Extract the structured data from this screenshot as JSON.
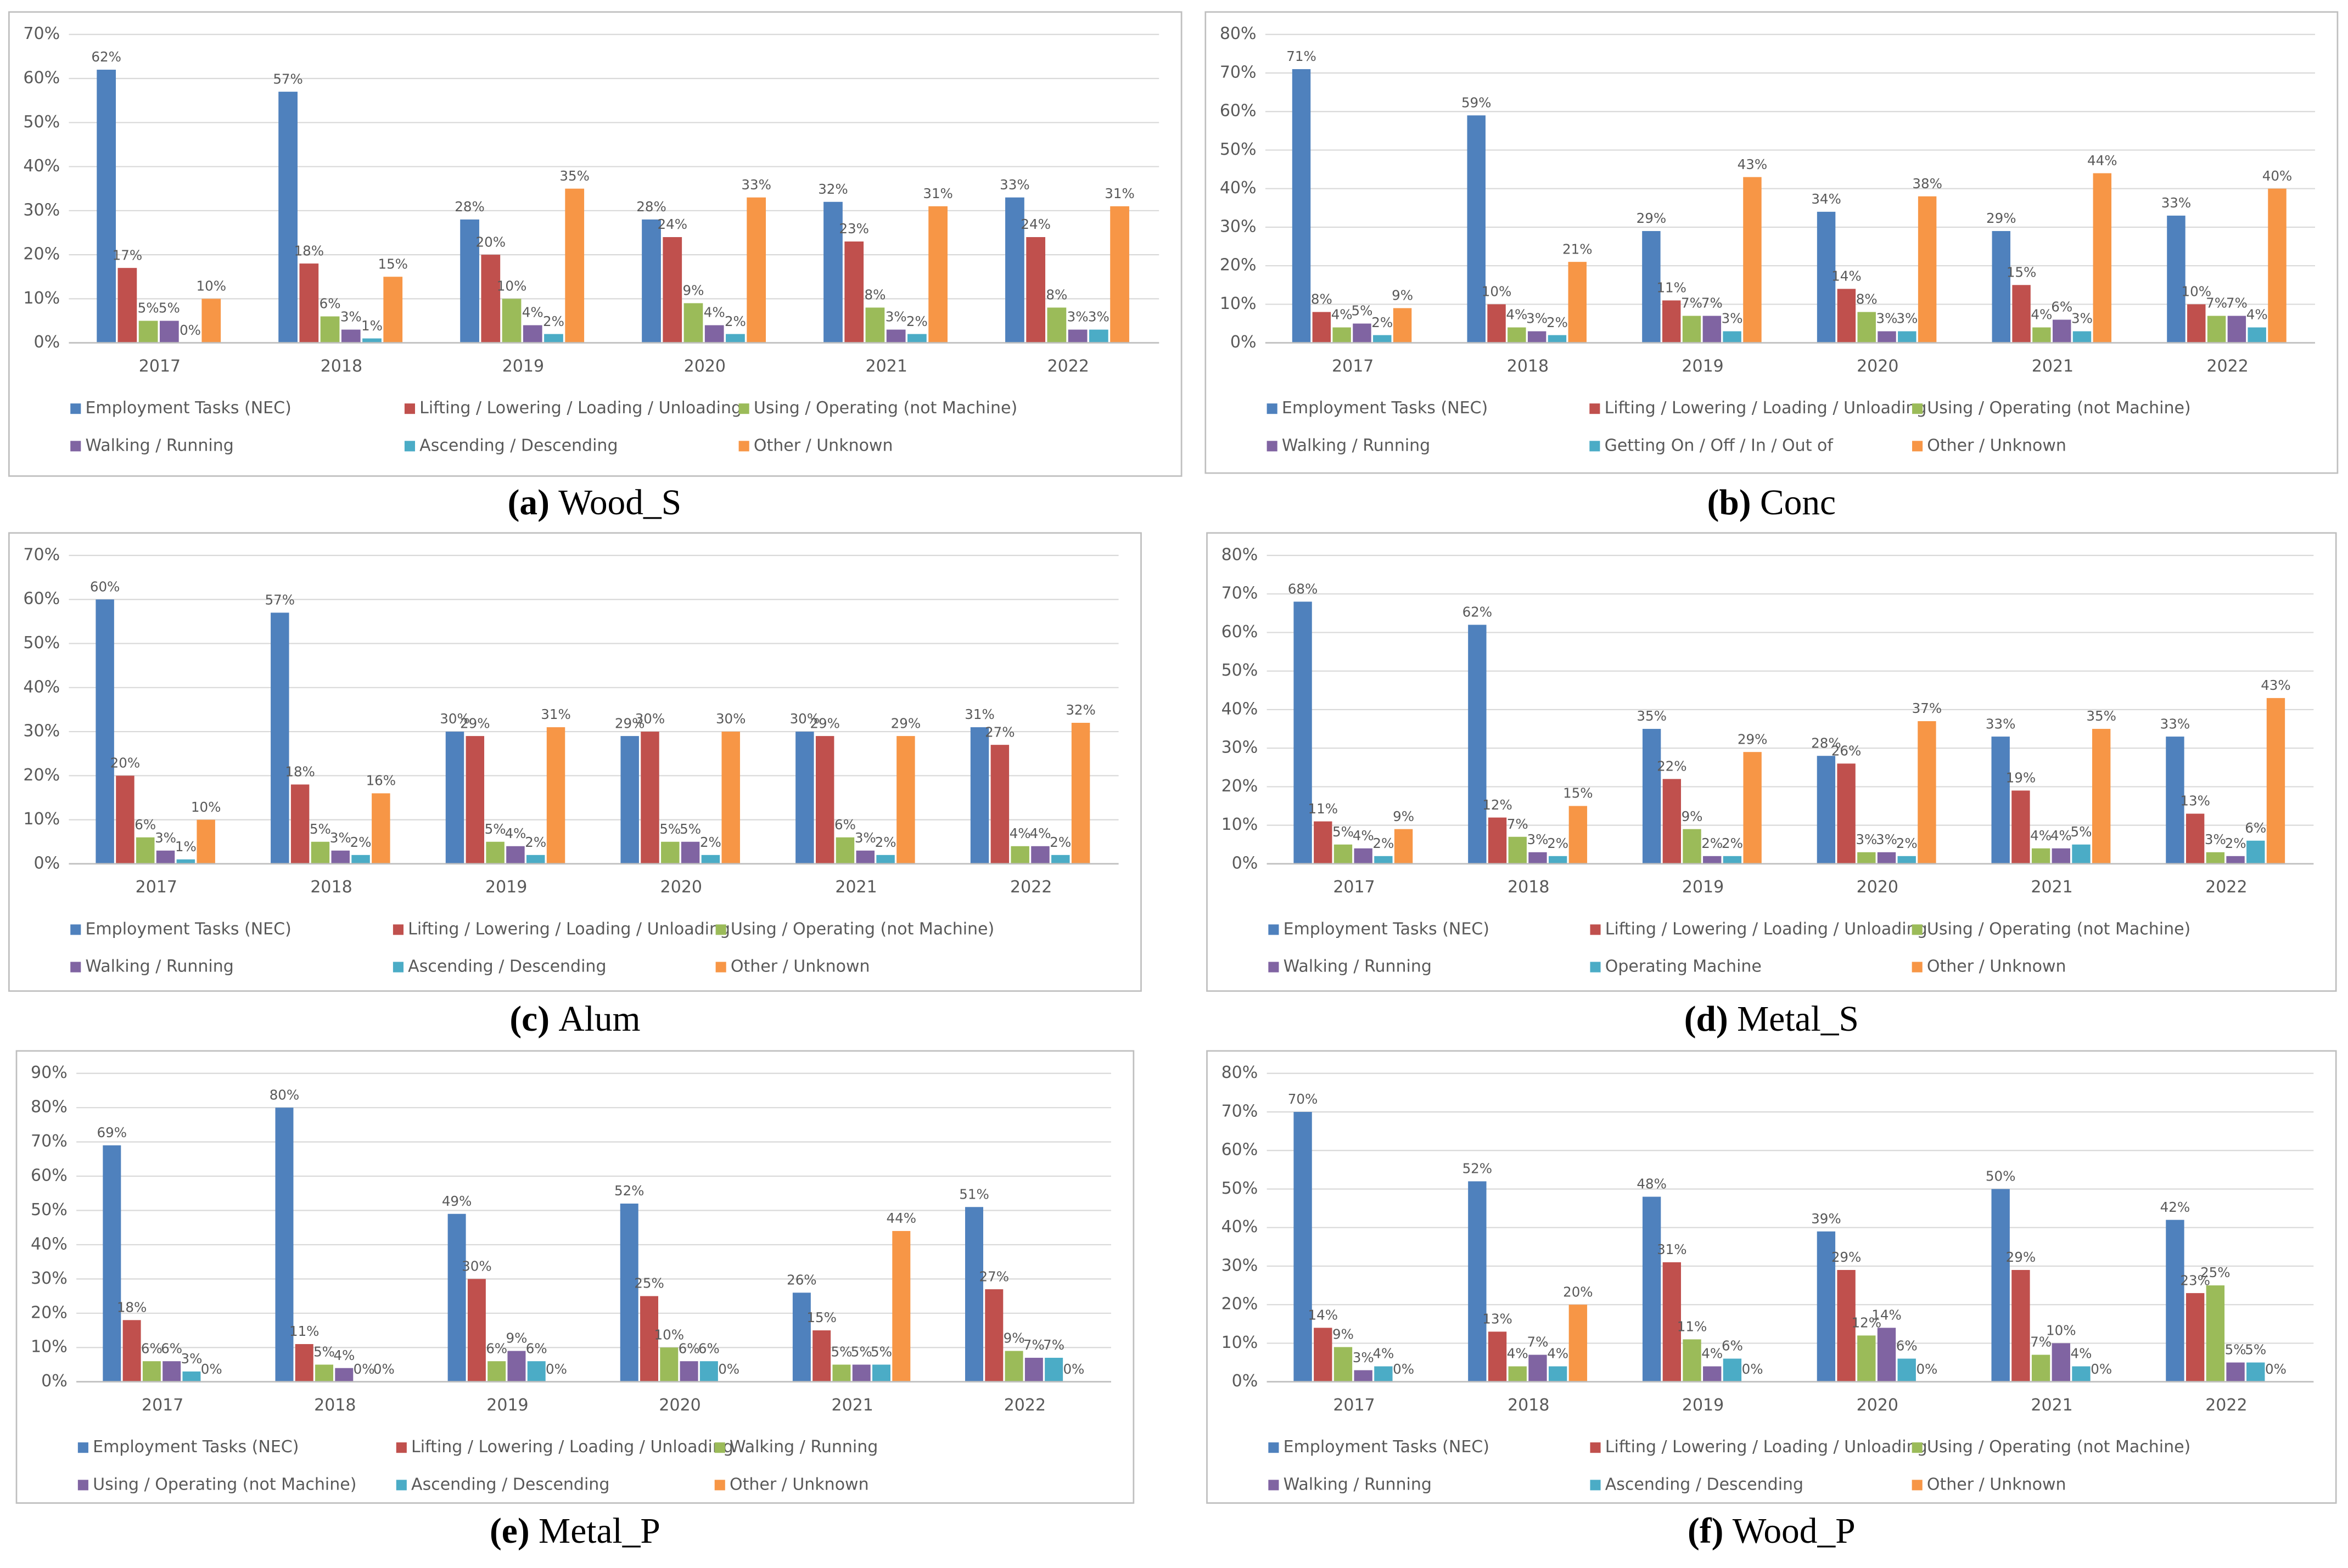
{
  "chart_data": [
    {
      "type": "bar",
      "caption_label": "(a)",
      "caption": "Wood_S",
      "categories": [
        "2017",
        "2018",
        "2019",
        "2020",
        "2021",
        "2022"
      ],
      "ylim": [
        0,
        70
      ],
      "yticks": [
        {
          "value": 0,
          "label": "0%"
        },
        {
          "value": 10,
          "label": "10%"
        },
        {
          "value": 20,
          "label": "20%"
        },
        {
          "value": 30,
          "label": "30%"
        },
        {
          "value": 40,
          "label": "40%"
        },
        {
          "value": 50,
          "label": "50%"
        },
        {
          "value": 60,
          "label": "60%"
        },
        {
          "value": 70,
          "label": "70%"
        }
      ],
      "grid": true,
      "series": [
        {
          "name": "Employment Tasks (NEC)",
          "color": "#4f81bd",
          "values": [
            62,
            57,
            28,
            28,
            32,
            33
          ],
          "value_labels": [
            "62%",
            "57%",
            "28%",
            "28%",
            "32%",
            "33%"
          ]
        },
        {
          "name": "Lifting / Lowering / Loading / Unloading",
          "color": "#c0504d",
          "values": [
            17,
            18,
            20,
            24,
            23,
            24
          ],
          "value_labels": [
            "17%",
            "18%",
            "20%",
            "24%",
            "23%",
            "24%"
          ]
        },
        {
          "name": "Using / Operating (not Machine)",
          "color": "#9bbb59",
          "values": [
            5,
            6,
            10,
            9,
            8,
            8
          ],
          "value_labels": [
            "5%",
            "6%",
            "10%",
            "9%",
            "8%",
            "8%"
          ]
        },
        {
          "name": "Walking / Running",
          "color": "#8064a2",
          "values": [
            5,
            3,
            4,
            4,
            3,
            3
          ],
          "value_labels": [
            "5%",
            "3%",
            "4%",
            "4%",
            "3%",
            "3%"
          ]
        },
        {
          "name": "Ascending / Descending",
          "color": "#4bacc6",
          "values": [
            0,
            1,
            2,
            2,
            2,
            3
          ],
          "value_labels": [
            "0%",
            "1%",
            "2%",
            "2%",
            "2%",
            "3%"
          ]
        },
        {
          "name": "Other / Unknown",
          "color": "#f79646",
          "values": [
            10,
            15,
            35,
            33,
            31,
            31
          ],
          "value_labels": [
            "10%",
            "15%",
            "35%",
            "33%",
            "31%",
            "31%"
          ]
        }
      ]
    },
    {
      "type": "bar",
      "caption_label": "(b)",
      "caption": "Conc",
      "categories": [
        "2017",
        "2018",
        "2019",
        "2020",
        "2021",
        "2022"
      ],
      "ylim": [
        0,
        80
      ],
      "yticks": [
        {
          "value": 0,
          "label": "0%"
        },
        {
          "value": 10,
          "label": "10%"
        },
        {
          "value": 20,
          "label": "20%"
        },
        {
          "value": 30,
          "label": "30%"
        },
        {
          "value": 40,
          "label": "40%"
        },
        {
          "value": 50,
          "label": "50%"
        },
        {
          "value": 60,
          "label": "60%"
        },
        {
          "value": 70,
          "label": "70%"
        },
        {
          "value": 80,
          "label": "80%"
        }
      ],
      "grid": true,
      "series": [
        {
          "name": "Employment Tasks (NEC)",
          "color": "#4f81bd",
          "values": [
            71,
            59,
            29,
            34,
            29,
            33
          ],
          "value_labels": [
            "71%",
            "59%",
            "29%",
            "34%",
            "29%",
            "33%"
          ]
        },
        {
          "name": "Lifting / Lowering / Loading / Unloading",
          "color": "#c0504d",
          "values": [
            8,
            10,
            11,
            14,
            15,
            10
          ],
          "value_labels": [
            "8%",
            "10%",
            "11%",
            "14%",
            "15%",
            "10%"
          ]
        },
        {
          "name": "Using / Operating (not Machine)",
          "color": "#9bbb59",
          "values": [
            4,
            4,
            7,
            8,
            4,
            7
          ],
          "value_labels": [
            "4%",
            "4%",
            "7%",
            "8%",
            "4%",
            "7%"
          ]
        },
        {
          "name": "Walking / Running",
          "color": "#8064a2",
          "values": [
            5,
            3,
            7,
            3,
            6,
            7
          ],
          "value_labels": [
            "5%",
            "3%",
            "7%",
            "3%",
            "6%",
            "7%"
          ]
        },
        {
          "name": "Getting On / Off / In / Out of",
          "color": "#4bacc6",
          "values": [
            2,
            2,
            3,
            3,
            3,
            4
          ],
          "value_labels": [
            "2%",
            "2%",
            "3%",
            "3%",
            "3%",
            "4%"
          ]
        },
        {
          "name": "Other / Unknown",
          "color": "#f79646",
          "values": [
            9,
            21,
            43,
            38,
            44,
            40
          ],
          "value_labels": [
            "9%",
            "21%",
            "43%",
            "38%",
            "44%",
            "40%"
          ]
        }
      ]
    },
    {
      "type": "bar",
      "caption_label": "(c)",
      "caption": "Alum",
      "categories": [
        "2017",
        "2018",
        "2019",
        "2020",
        "2021",
        "2022"
      ],
      "ylim": [
        0,
        70
      ],
      "yticks": [
        {
          "value": 0,
          "label": "0%"
        },
        {
          "value": 10,
          "label": "10%"
        },
        {
          "value": 20,
          "label": "20%"
        },
        {
          "value": 30,
          "label": "30%"
        },
        {
          "value": 40,
          "label": "40%"
        },
        {
          "value": 50,
          "label": "50%"
        },
        {
          "value": 60,
          "label": "60%"
        },
        {
          "value": 70,
          "label": "70%"
        }
      ],
      "grid": true,
      "series": [
        {
          "name": "Employment Tasks (NEC)",
          "color": "#4f81bd",
          "values": [
            60,
            57,
            30,
            29,
            30,
            31
          ],
          "value_labels": [
            "60%",
            "57%",
            "30%",
            "29%",
            "30%",
            "31%"
          ]
        },
        {
          "name": "Lifting / Lowering / Loading / Unloading",
          "color": "#c0504d",
          "values": [
            20,
            18,
            29,
            30,
            29,
            27
          ],
          "value_labels": [
            "20%",
            "18%",
            "29%",
            "30%",
            "29%",
            "27%"
          ]
        },
        {
          "name": "Using / Operating (not Machine)",
          "color": "#9bbb59",
          "values": [
            6,
            5,
            5,
            5,
            6,
            4
          ],
          "value_labels": [
            "6%",
            "5%",
            "5%",
            "5%",
            "6%",
            "4%"
          ]
        },
        {
          "name": "Walking / Running",
          "color": "#8064a2",
          "values": [
            3,
            3,
            4,
            5,
            3,
            4
          ],
          "value_labels": [
            "3%",
            "3%",
            "4%",
            "5%",
            "3%",
            "4%"
          ]
        },
        {
          "name": "Ascending / Descending",
          "color": "#4bacc6",
          "values": [
            1,
            2,
            2,
            2,
            2,
            2
          ],
          "value_labels": [
            "1%",
            "2%",
            "2%",
            "2%",
            "2%",
            "2%"
          ]
        },
        {
          "name": "Other / Unknown",
          "color": "#f79646",
          "values": [
            10,
            16,
            31,
            30,
            29,
            32
          ],
          "value_labels": [
            "10%",
            "16%",
            "31%",
            "30%",
            "29%",
            "32%"
          ]
        }
      ]
    },
    {
      "type": "bar",
      "caption_label": "(d)",
      "caption": "Metal_S",
      "categories": [
        "2017",
        "2018",
        "2019",
        "2020",
        "2021",
        "2022"
      ],
      "ylim": [
        0,
        80
      ],
      "yticks": [
        {
          "value": 0,
          "label": "0%"
        },
        {
          "value": 10,
          "label": "10%"
        },
        {
          "value": 20,
          "label": "20%"
        },
        {
          "value": 30,
          "label": "30%"
        },
        {
          "value": 40,
          "label": "40%"
        },
        {
          "value": 50,
          "label": "50%"
        },
        {
          "value": 60,
          "label": "60%"
        },
        {
          "value": 70,
          "label": "70%"
        },
        {
          "value": 80,
          "label": "80%"
        }
      ],
      "grid": true,
      "series": [
        {
          "name": "Employment Tasks (NEC)",
          "color": "#4f81bd",
          "values": [
            68,
            62,
            35,
            28,
            33,
            33
          ],
          "value_labels": [
            "68%",
            "62%",
            "35%",
            "28%",
            "33%",
            "33%"
          ]
        },
        {
          "name": "Lifting / Lowering / Loading / Unloading",
          "color": "#c0504d",
          "values": [
            11,
            12,
            22,
            26,
            19,
            13
          ],
          "value_labels": [
            "11%",
            "12%",
            "22%",
            "26%",
            "19%",
            "13%"
          ]
        },
        {
          "name": "Using / Operating (not Machine)",
          "color": "#9bbb59",
          "values": [
            5,
            7,
            9,
            3,
            4,
            3
          ],
          "value_labels": [
            "5%",
            "7%",
            "9%",
            "3%",
            "4%",
            "3%"
          ]
        },
        {
          "name": "Walking / Running",
          "color": "#8064a2",
          "values": [
            4,
            3,
            2,
            3,
            4,
            2
          ],
          "value_labels": [
            "4%",
            "3%",
            "2%",
            "3%",
            "4%",
            "2%"
          ]
        },
        {
          "name": "Operating Machine",
          "color": "#4bacc6",
          "values": [
            2,
            2,
            2,
            2,
            5,
            6
          ],
          "value_labels": [
            "2%",
            "2%",
            "2%",
            "2%",
            "5%",
            "6%"
          ]
        },
        {
          "name": "Other / Unknown",
          "color": "#f79646",
          "values": [
            9,
            15,
            29,
            37,
            35,
            43
          ],
          "value_labels": [
            "9%",
            "15%",
            "29%",
            "37%",
            "35%",
            "43%"
          ]
        }
      ]
    },
    {
      "type": "bar",
      "caption_label": "(e)",
      "caption": "Metal_P",
      "categories": [
        "2017",
        "2018",
        "2019",
        "2020",
        "2021",
        "2022"
      ],
      "ylim": [
        0,
        90
      ],
      "yticks": [
        {
          "value": 0,
          "label": "0%"
        },
        {
          "value": 10,
          "label": "10%"
        },
        {
          "value": 20,
          "label": "20%"
        },
        {
          "value": 30,
          "label": "30%"
        },
        {
          "value": 40,
          "label": "40%"
        },
        {
          "value": 50,
          "label": "50%"
        },
        {
          "value": 60,
          "label": "60%"
        },
        {
          "value": 70,
          "label": "70%"
        },
        {
          "value": 80,
          "label": "80%"
        },
        {
          "value": 90,
          "label": "90%"
        }
      ],
      "grid": true,
      "series": [
        {
          "name": "Employment Tasks (NEC)",
          "color": "#4f81bd",
          "values": [
            69,
            80,
            49,
            52,
            26,
            51
          ],
          "value_labels": [
            "69%",
            "80%",
            "49%",
            "52%",
            "26%",
            "51%"
          ]
        },
        {
          "name": "Lifting / Lowering / Loading / Unloading",
          "color": "#c0504d",
          "values": [
            18,
            11,
            30,
            25,
            15,
            27
          ],
          "value_labels": [
            "18%",
            "11%",
            "30%",
            "25%",
            "15%",
            "27%"
          ]
        },
        {
          "name": "Walking / Running",
          "color": "#9bbb59",
          "values": [
            6,
            5,
            6,
            10,
            5,
            9
          ],
          "value_labels": [
            "6%",
            "5%",
            "6%",
            "10%",
            "5%",
            "9%"
          ]
        },
        {
          "name": "Using / Operating (not Machine)",
          "color": "#8064a2",
          "values": [
            6,
            4,
            9,
            6,
            5,
            7
          ],
          "value_labels": [
            "6%",
            "4%",
            "9%",
            "6%",
            "5%",
            "7%"
          ]
        },
        {
          "name": "Ascending / Descending",
          "color": "#4bacc6",
          "values": [
            3,
            0,
            6,
            6,
            5,
            7
          ],
          "value_labels": [
            "3%",
            "0%",
            "6%",
            "6%",
            "5%",
            "7%"
          ]
        },
        {
          "name": "Other / Unknown",
          "color": "#f79646",
          "values": [
            0,
            0,
            0,
            0,
            44,
            0
          ],
          "value_labels": [
            "0%",
            "0%",
            "0%",
            "0%",
            "44%",
            "0%"
          ]
        }
      ]
    },
    {
      "type": "bar",
      "caption_label": "(f)",
      "caption": "Wood_P",
      "categories": [
        "2017",
        "2018",
        "2019",
        "2020",
        "2021",
        "2022"
      ],
      "ylim": [
        0,
        80
      ],
      "yticks": [
        {
          "value": 0,
          "label": "0%"
        },
        {
          "value": 10,
          "label": "10%"
        },
        {
          "value": 20,
          "label": "20%"
        },
        {
          "value": 30,
          "label": "30%"
        },
        {
          "value": 40,
          "label": "40%"
        },
        {
          "value": 50,
          "label": "50%"
        },
        {
          "value": 60,
          "label": "60%"
        },
        {
          "value": 70,
          "label": "70%"
        },
        {
          "value": 80,
          "label": "80%"
        }
      ],
      "grid": true,
      "series": [
        {
          "name": "Employment Tasks (NEC)",
          "color": "#4f81bd",
          "values": [
            70,
            52,
            48,
            39,
            50,
            42
          ],
          "value_labels": [
            "70%",
            "52%",
            "48%",
            "39%",
            "50%",
            "42%"
          ]
        },
        {
          "name": "Lifting / Lowering / Loading / Unloading",
          "color": "#c0504d",
          "values": [
            14,
            13,
            31,
            29,
            29,
            23
          ],
          "value_labels": [
            "14%",
            "13%",
            "31%",
            "29%",
            "29%",
            "23%"
          ]
        },
        {
          "name": "Using / Operating (not Machine)",
          "color": "#9bbb59",
          "values": [
            9,
            4,
            11,
            12,
            7,
            25
          ],
          "value_labels": [
            "9%",
            "4%",
            "11%",
            "12%",
            "7%",
            "25%"
          ]
        },
        {
          "name": "Walking / Running",
          "color": "#8064a2",
          "values": [
            3,
            7,
            4,
            14,
            10,
            5
          ],
          "value_labels": [
            "3%",
            "7%",
            "4%",
            "14%",
            "10%",
            "5%"
          ]
        },
        {
          "name": "Ascending / Descending",
          "color": "#4bacc6",
          "values": [
            4,
            4,
            6,
            6,
            4,
            5
          ],
          "value_labels": [
            "4%",
            "4%",
            "6%",
            "6%",
            "4%",
            "5%"
          ]
        },
        {
          "name": "Other / Unknown",
          "color": "#f79646",
          "values": [
            0,
            20,
            0,
            0,
            0,
            0
          ],
          "value_labels": [
            "0%",
            "20%",
            "0%",
            "0%",
            "0%",
            "0%"
          ]
        }
      ]
    }
  ]
}
